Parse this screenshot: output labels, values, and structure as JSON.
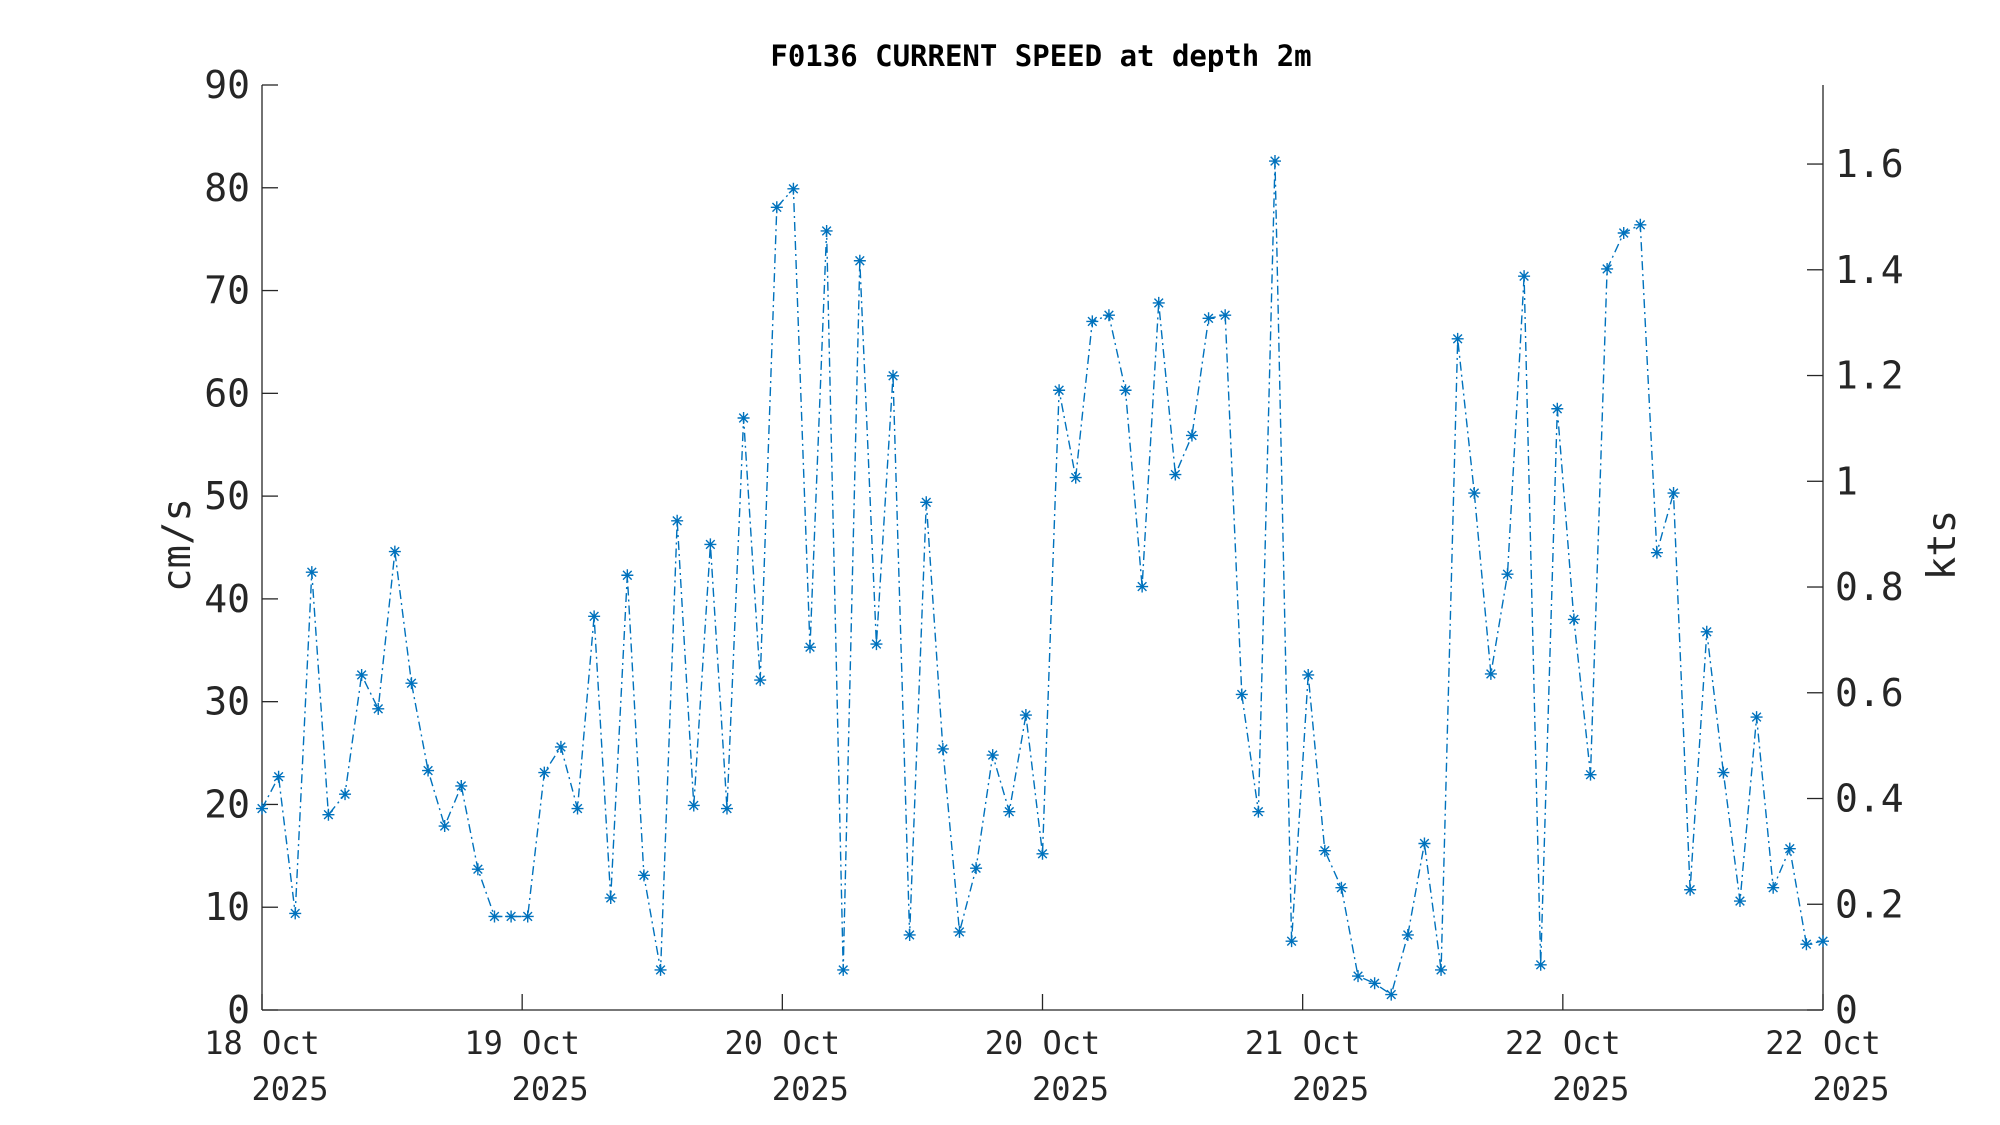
{
  "chart_data": {
    "type": "line",
    "title": "F0136 CURRENT SPEED at depth 2m",
    "ylabel": "cm/s",
    "y2label": "kts",
    "ylim": [
      0,
      90
    ],
    "y2lim": [
      0,
      1.7495
    ],
    "yticks": [
      0,
      10,
      20,
      30,
      40,
      50,
      60,
      70,
      80,
      90
    ],
    "y2ticks": [
      0,
      0.2,
      0.4,
      0.6,
      0.8,
      1,
      1.2,
      1.4,
      1.6
    ],
    "y2ticklabels": [
      "0",
      "0.2",
      "0.4",
      "0.6",
      "0.8",
      "1",
      "1.2",
      "1.4",
      "1.6"
    ],
    "xlim": [
      0,
      6
    ],
    "xticks": [
      {
        "x": 0,
        "line1": "18 Oct",
        "line2": "2025"
      },
      {
        "x": 1,
        "line1": "19 Oct",
        "line2": "2025"
      },
      {
        "x": 2,
        "line1": "20 Oct",
        "line2": "2025"
      },
      {
        "x": 3,
        "line1": "20 Oct",
        "line2": "2025"
      },
      {
        "x": 4,
        "line1": "21 Oct",
        "line2": "2025"
      },
      {
        "x": 5,
        "line1": "22 Oct",
        "line2": "2025"
      },
      {
        "x": 6,
        "line1": "22 Oct",
        "line2": "2025"
      }
    ],
    "grid": false,
    "line_style": "dash-dot",
    "marker": "asterisk",
    "color": "#0072BD",
    "series": [
      {
        "values": [
          19.6,
          22.7,
          9.4,
          42.6,
          19.0,
          21.0,
          32.6,
          29.3,
          44.6,
          31.8,
          23.3,
          17.9,
          21.8,
          13.7,
          9.1,
          9.1,
          9.1,
          23.1,
          25.6,
          19.6,
          38.3,
          10.9,
          42.3,
          13.1,
          3.9,
          47.6,
          19.9,
          45.3,
          19.6,
          57.6,
          32.1,
          78.1,
          79.9,
          35.3,
          75.8,
          3.9,
          72.9,
          35.6,
          61.7,
          7.3,
          49.4,
          25.4,
          7.6,
          13.8,
          24.8,
          19.3,
          28.7,
          15.2,
          60.3,
          51.8,
          67.0,
          67.6,
          60.3,
          41.2,
          68.8,
          52.1,
          55.9,
          67.3,
          67.6,
          30.7,
          19.3,
          82.6,
          6.7,
          32.6,
          15.5,
          11.9,
          3.3,
          2.6,
          1.5,
          7.3,
          16.2,
          3.9,
          65.3,
          50.3,
          32.7,
          42.4,
          71.4,
          4.4,
          58.5,
          38.0,
          22.9,
          72.1,
          75.6,
          76.4,
          44.5,
          50.3,
          11.7,
          36.8,
          23.1,
          10.6,
          28.5,
          11.9,
          15.7,
          6.4,
          6.7
        ]
      }
    ]
  }
}
